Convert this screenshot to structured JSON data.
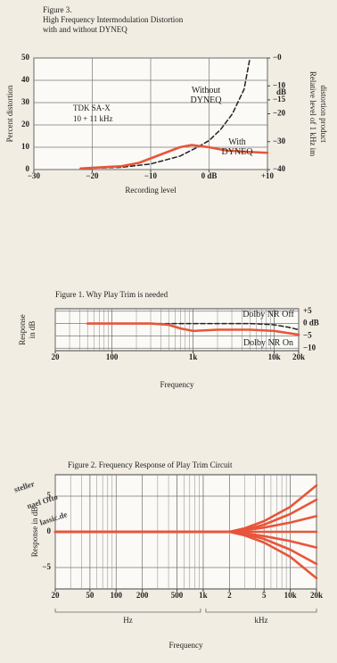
{
  "watermark": [
    "steller",
    "nael Otto",
    "lassic.de"
  ],
  "chart_data": [
    {
      "type": "line",
      "title": [
        "Figure 3.",
        "High Frequency Intermodulation Distortion",
        "with and without DYNEQ"
      ],
      "xlabel": "Recording level",
      "ylabel": "Percent distortion",
      "y2label": [
        "Relative level of 1 kHz im",
        "distortion product"
      ],
      "y2unit": "dB",
      "annotations": [
        "TDK SA-X",
        "10 + 11 kHz"
      ],
      "xlim": [
        -30,
        10
      ],
      "xticks": [
        {
          "value": -30,
          "label": "−30"
        },
        {
          "value": -20,
          "label": "−20"
        },
        {
          "value": -10,
          "label": "−10"
        },
        {
          "value": 0,
          "label": "0 dB"
        },
        {
          "value": 10,
          "label": "+10"
        }
      ],
      "ylim": [
        0,
        50
      ],
      "yticks": [
        0,
        10,
        20,
        30,
        40,
        50
      ],
      "y2lim": [
        -40,
        0
      ],
      "y2ticks": [
        {
          "value": 0,
          "label": "−0"
        },
        {
          "value": -10,
          "label": "−10"
        },
        {
          "value": -15,
          "label": "−15"
        },
        {
          "value": -20,
          "label": "−20"
        },
        {
          "value": -30,
          "label": "−30"
        },
        {
          "value": -40,
          "label": "−40"
        }
      ],
      "grid": true,
      "ytick_side": "left",
      "series": [
        {
          "name": "Without DYNEQ",
          "color": "#222222",
          "linestyle": "dashed",
          "x": [
            -22,
            -15,
            -10,
            -5,
            -2,
            0,
            2,
            4,
            6,
            7
          ],
          "values": [
            0.5,
            1,
            2.5,
            6,
            10,
            13,
            18,
            25,
            36,
            50
          ]
        },
        {
          "name": "With DYNEQ",
          "color": "#e8553a",
          "linestyle": "solid",
          "x": [
            -22,
            -15,
            -12,
            -10,
            -7,
            -5,
            -3,
            0,
            3,
            6,
            10
          ],
          "values": [
            0.5,
            1.5,
            3,
            5,
            8,
            10,
            11,
            10,
            8.5,
            8,
            7.5
          ]
        }
      ]
    },
    {
      "type": "line",
      "title": [
        "Figure 1. Why Play Trim is needed"
      ],
      "xlabel": "Frequency",
      "ylabel": [
        "Response",
        "in dB"
      ],
      "xscale": "log",
      "xlim": [
        20,
        20000
      ],
      "xticks": [
        20,
        100,
        {
          "value": 1000,
          "label": "1k"
        },
        {
          "value": 10000,
          "label": "10k"
        },
        {
          "value": 20000,
          "label": "20k"
        }
      ],
      "ylim": [
        -11,
        6
      ],
      "yticks": [
        {
          "value": 5,
          "label": "+5"
        },
        {
          "value": 0,
          "label": "0 dB"
        },
        {
          "value": -5,
          "label": "−5"
        },
        {
          "value": -10,
          "label": "−10"
        }
      ],
      "grid": true,
      "ytick_side": "right",
      "series": [
        {
          "name": "Dolby NR Off",
          "color": "#222222",
          "linestyle": "dashed",
          "x": [
            200,
            1000,
            5000,
            10000,
            15000,
            20000
          ],
          "values": [
            0,
            0,
            0,
            -0.5,
            -1.5,
            -2.5
          ]
        },
        {
          "name": "Dolby NR On",
          "color": "#e8553a",
          "linestyle": "solid",
          "x": [
            50,
            300,
            500,
            700,
            1000,
            2000,
            5000,
            10000,
            20000
          ],
          "values": [
            0,
            0,
            -0.5,
            -2,
            -3,
            -2.5,
            -2.5,
            -3,
            -4.5
          ]
        }
      ]
    },
    {
      "type": "line",
      "title": [
        "Figure 2. Frequency Response of Play Trim Circuit"
      ],
      "xlabel": "Frequency",
      "ylabel": "Response in dB",
      "xscale": "log",
      "xlim": [
        20,
        20000
      ],
      "xticks": [
        20,
        50,
        100,
        200,
        500,
        {
          "value": 1000,
          "label": "1k"
        },
        {
          "value": 2000,
          "label": "2"
        },
        {
          "value": 5000,
          "label": "5"
        },
        {
          "value": 10000,
          "label": "10k"
        },
        {
          "value": 20000,
          "label": "20k"
        }
      ],
      "xunits": [
        {
          "label": "Hz",
          "range": [
            20,
            1000
          ]
        },
        {
          "label": "kHz",
          "range": [
            1000,
            20000
          ]
        }
      ],
      "ylim": [
        -8,
        8
      ],
      "yticks": [
        5,
        0,
        {
          "value": -5,
          "label": "−5"
        }
      ],
      "grid": true,
      "ytick_side": "left",
      "series": [
        {
          "color": "#e8553a",
          "linestyle": "solid",
          "x": [
            20,
            1000,
            2000,
            3000,
            5000,
            10000,
            20000
          ],
          "values": [
            0,
            0,
            0,
            0.5,
            1.5,
            3.5,
            6.5
          ]
        },
        {
          "color": "#e8553a",
          "linestyle": "solid",
          "x": [
            20,
            1000,
            2000,
            3000,
            5000,
            10000,
            20000
          ],
          "values": [
            0,
            0,
            0,
            0.3,
            1,
            2.5,
            4.5
          ]
        },
        {
          "color": "#e8553a",
          "linestyle": "solid",
          "x": [
            20,
            1000,
            2000,
            3000,
            5000,
            10000,
            20000
          ],
          "values": [
            0,
            0,
            0,
            0.2,
            0.6,
            1.3,
            2.2
          ]
        },
        {
          "color": "#e8553a",
          "linestyle": "solid",
          "x": [
            20,
            1000,
            2000,
            3000,
            5000,
            10000,
            20000
          ],
          "values": [
            0,
            0,
            0,
            0,
            0,
            0,
            0
          ]
        },
        {
          "color": "#e8553a",
          "linestyle": "solid",
          "x": [
            20,
            1000,
            2000,
            3000,
            5000,
            10000,
            20000
          ],
          "values": [
            0,
            0,
            0,
            -0.2,
            -0.6,
            -1.3,
            -2.2
          ]
        },
        {
          "color": "#e8553a",
          "linestyle": "solid",
          "x": [
            20,
            1000,
            2000,
            3000,
            5000,
            10000,
            20000
          ],
          "values": [
            0,
            0,
            0,
            -0.3,
            -1,
            -2.5,
            -4.5
          ]
        },
        {
          "color": "#e8553a",
          "linestyle": "solid",
          "x": [
            20,
            1000,
            2000,
            3000,
            5000,
            10000,
            20000
          ],
          "values": [
            0,
            0,
            0,
            -0.5,
            -1.5,
            -3.5,
            -6.5
          ]
        }
      ]
    }
  ]
}
